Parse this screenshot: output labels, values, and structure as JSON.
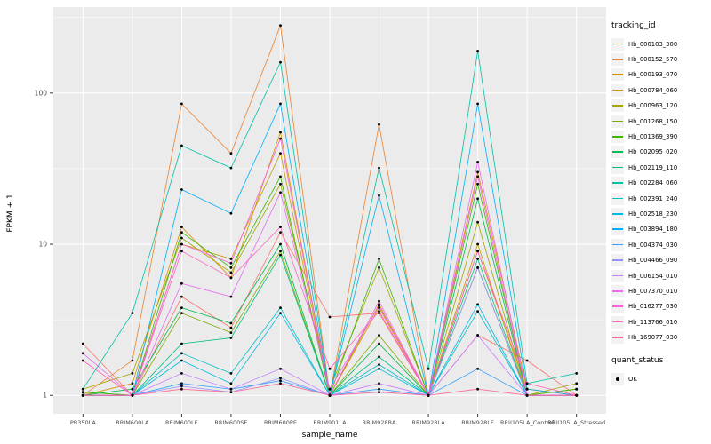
{
  "chart_data": {
    "type": "line",
    "title": "",
    "xlabel": "sample_name",
    "ylabel": "FPKM + 1",
    "y_scale": "log10",
    "ylim": [
      1,
      320
    ],
    "y_major_ticks": [
      1,
      10,
      100
    ],
    "y_minor_ticks": [
      3.162,
      31.62,
      316.2
    ],
    "grid": true,
    "panel_bg": "#EBEBEB",
    "grid_color": "#FFFFFF",
    "tick_label_color": "#4D4D4D",
    "legend_title": "tracking_id",
    "legend_position": "right",
    "quant_legend": {
      "title": "quant_status",
      "items": [
        "OK"
      ]
    },
    "categories": [
      "PB350LA",
      "RRIM600LA",
      "RRIM600LE",
      "RRIM600SE",
      "RRIM600PE",
      "RRIM901LA",
      "RRIM928BA",
      "RRIM928LA",
      "RRIM928LE",
      "RRII105LA_Control",
      "RRII105LA_Stressed"
    ],
    "series": [
      {
        "name": "Hb_000103_300",
        "color": "#F8766D",
        "values": [
          2.2,
          1.0,
          4.5,
          2.8,
          12,
          3.3,
          3.5,
          1.0,
          2.5,
          1.7,
          1.0
        ]
      },
      {
        "name": "Hb_000152_570",
        "color": "#EA8331",
        "values": [
          1.0,
          1.7,
          85,
          40,
          280,
          1.0,
          62,
          1.0,
          9,
          1.1,
          1.0
        ]
      },
      {
        "name": "Hb_000193_070",
        "color": "#D89000",
        "values": [
          1.0,
          1.2,
          13,
          6,
          55,
          1.0,
          3.8,
          1.0,
          30,
          1.1,
          1.0
        ]
      },
      {
        "name": "Hb_000784_060",
        "color": "#C09B00",
        "values": [
          1.0,
          1.0,
          10,
          8,
          40,
          1.0,
          4.0,
          1.0,
          10,
          1.0,
          1.0
        ]
      },
      {
        "name": "Hb_000963_120",
        "color": "#A3A500",
        "values": [
          1.1,
          1.4,
          11,
          6.5,
          25,
          1.1,
          7.0,
          1.0,
          14,
          1.0,
          1.2
        ]
      },
      {
        "name": "Hb_001268_150",
        "color": "#7CAE00",
        "values": [
          1.05,
          1.0,
          3.5,
          2.6,
          9,
          1.0,
          2.5,
          1.0,
          7,
          1.0,
          1.1
        ]
      },
      {
        "name": "Hb_001369_390",
        "color": "#39B600",
        "values": [
          1.05,
          1.0,
          12,
          7,
          28,
          1.0,
          8,
          1.0,
          25,
          1.0,
          1.1
        ]
      },
      {
        "name": "Hb_002095_020",
        "color": "#00BB4E",
        "values": [
          1.0,
          1.1,
          3.8,
          3.0,
          10,
          1.0,
          2.2,
          1.0,
          20,
          1.0,
          1.0
        ]
      },
      {
        "name": "Hb_002119_110",
        "color": "#00BF7D",
        "values": [
          1.0,
          1.0,
          2.2,
          2.4,
          8.5,
          1.0,
          1.8,
          1.0,
          8,
          1.0,
          1.0
        ]
      },
      {
        "name": "Hb_002284_060",
        "color": "#00C1A3",
        "values": [
          1.1,
          3.5,
          45,
          32,
          160,
          1.0,
          32,
          1.5,
          190,
          1.2,
          1.4
        ]
      },
      {
        "name": "Hb_002391_240",
        "color": "#00BFC4",
        "values": [
          1.0,
          1.0,
          1.9,
          1.4,
          3.8,
          1.0,
          1.6,
          1.0,
          3.6,
          1.0,
          1.0
        ]
      },
      {
        "name": "Hb_002518_230",
        "color": "#00BAE0",
        "values": [
          1.0,
          1.0,
          1.7,
          1.2,
          3.5,
          1.0,
          1.5,
          1.0,
          4.0,
          1.0,
          1.0
        ]
      },
      {
        "name": "Hb_003894_180",
        "color": "#00B0F6",
        "values": [
          1.0,
          1.0,
          23,
          16,
          85,
          1.0,
          21,
          1.0,
          85,
          1.1,
          1.0
        ]
      },
      {
        "name": "Hb_004374_030",
        "color": "#35A2FF",
        "values": [
          1.0,
          1.0,
          1.2,
          1.1,
          1.25,
          1.0,
          1.1,
          1.0,
          1.5,
          1.0,
          1.0
        ]
      },
      {
        "name": "Hb_004466_090",
        "color": "#9590FF",
        "values": [
          1.0,
          1.0,
          1.15,
          1.05,
          1.3,
          1.0,
          1.05,
          1.0,
          7.0,
          1.0,
          1.0
        ]
      },
      {
        "name": "Hb_006154_010",
        "color": "#C77CFF",
        "values": [
          1.0,
          1.0,
          1.4,
          1.1,
          1.5,
          1.0,
          1.2,
          1.0,
          2.5,
          1.0,
          1.0
        ]
      },
      {
        "name": "Hb_007370_010",
        "color": "#E76BF3",
        "values": [
          1.9,
          1.0,
          5.5,
          4.5,
          22,
          1.1,
          3.9,
          1.0,
          35,
          1.0,
          1.0
        ]
      },
      {
        "name": "Hb_016277_030",
        "color": "#FA62DB",
        "values": [
          1.0,
          1.0,
          10,
          7.5,
          50,
          1.0,
          4.2,
          1.0,
          28,
          1.0,
          1.0
        ]
      },
      {
        "name": "Hb_113766_010",
        "color": "#FF62BC",
        "values": [
          1.7,
          1.0,
          9,
          6,
          13,
          1.5,
          3.6,
          1.0,
          9,
          1.2,
          1.0
        ]
      },
      {
        "name": "Hb_169077_030",
        "color": "#FF6A98",
        "values": [
          1.0,
          1.0,
          1.1,
          1.05,
          1.2,
          1.0,
          1.05,
          1.0,
          1.1,
          1.0,
          1.0
        ]
      }
    ]
  }
}
